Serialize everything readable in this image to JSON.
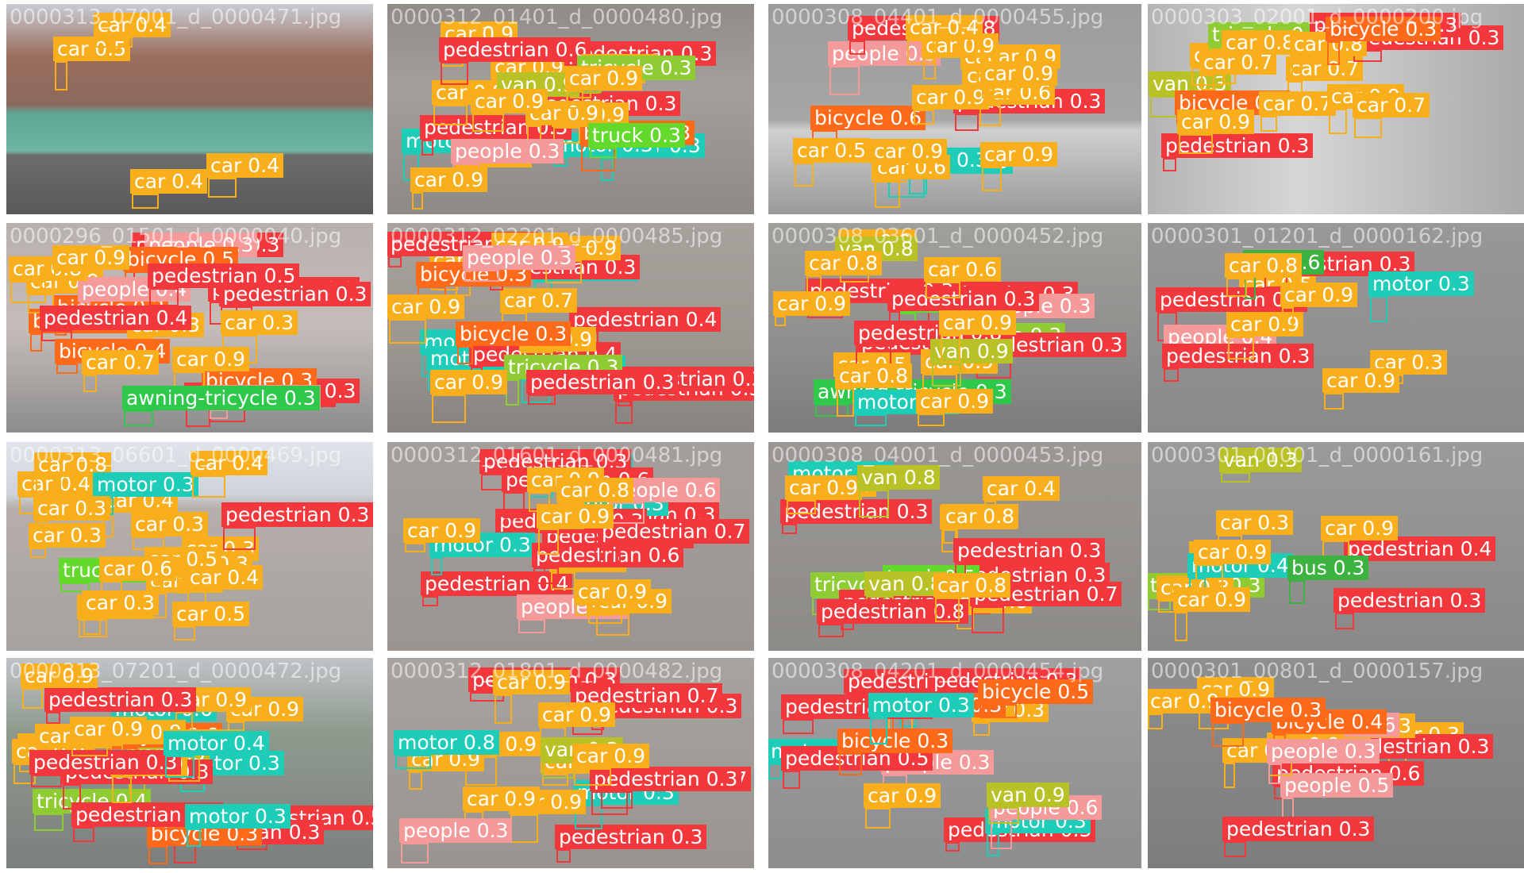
{
  "colors": {
    "pedestrian": "#f2383c",
    "people": "#f59a9a",
    "bicycle": "#ff6a1a",
    "car": "#f9ae1c",
    "van": "#b8c226",
    "truck": "#62d92b",
    "tricycle": "#8fcc33",
    "awning-tricycle": "#2ec84a",
    "bus": "#3cb340",
    "motor": "#1ecdb8"
  },
  "tiles": [
    {
      "filename": "0000313_07001_d_0000471.jpg",
      "dets": [
        [
          "car",
          0.4
        ],
        [
          "car",
          0.4
        ],
        [
          "car",
          0.5
        ],
        [
          "car",
          0.4
        ]
      ]
    },
    {
      "filename": "0000312_01401_d_0000480.jpg",
      "dets": [
        [
          "motor",
          0.3
        ],
        [
          "pedestrian",
          0.3
        ],
        [
          "motor",
          0.3
        ],
        [
          "motor",
          0.3
        ],
        [
          "bicycle",
          0.3
        ],
        [
          "pedestrian",
          0.3
        ],
        [
          "car",
          0.9
        ],
        [
          "car",
          0.9
        ],
        [
          "car",
          0.9
        ],
        [
          "car",
          0.9
        ],
        [
          "car",
          0.9
        ],
        [
          "car",
          0.9
        ],
        [
          "pedestrian",
          0.3
        ],
        [
          "car",
          0.9
        ],
        [
          "van",
          0.9
        ],
        [
          "pedestrian",
          0.6
        ],
        [
          "people",
          0.3
        ],
        [
          "car",
          0.9
        ],
        [
          "car",
          0.9
        ],
        [
          "truck",
          0.3
        ],
        [
          "tricycle",
          0.3
        ],
        [
          "car",
          0.9
        ],
        [
          "car",
          0.9
        ]
      ]
    },
    {
      "filename": "0000308_04401_d_0000455.jpg",
      "dets": [
        [
          "motor",
          0.3
        ],
        [
          "people",
          0.3
        ],
        [
          "pedestrian",
          0.3
        ],
        [
          "motor",
          0.3
        ],
        [
          "car",
          0.6
        ],
        [
          "car",
          0.9
        ],
        [
          "pedestrian",
          0.8
        ],
        [
          "car",
          0.9
        ],
        [
          "bicycle",
          0.6
        ],
        [
          "car",
          0.9
        ],
        [
          "car",
          0.9
        ],
        [
          "car",
          0.5
        ],
        [
          "car",
          0.9
        ],
        [
          "car",
          0.6
        ],
        [
          "car",
          0.9
        ],
        [
          "car",
          0.4
        ],
        [
          "car",
          0.9
        ],
        [
          "car",
          0.9
        ]
      ]
    },
    {
      "filename": "0000303_02001_d_0000200.jpg",
      "dets": [
        [
          "pedestrian",
          0.3
        ],
        [
          "van",
          0.3
        ],
        [
          "car",
          0.8
        ],
        [
          "car",
          0.7
        ],
        [
          "pedestrian",
          0.3
        ],
        [
          "tricycle",
          0.3
        ],
        [
          "pedestrian",
          0.3
        ],
        [
          "bicycle",
          0.6
        ],
        [
          "car",
          0.8
        ],
        [
          "car",
          0.7
        ],
        [
          "car",
          0.8
        ],
        [
          "car",
          0.9
        ],
        [
          "bicycle",
          0.3
        ],
        [
          "car",
          0.7
        ],
        [
          "car",
          0.7
        ],
        [
          "car",
          0.9
        ]
      ]
    },
    {
      "filename": "0000296_01501_d_0000040.jpg",
      "dets": [
        [
          "pedestrian",
          0.3
        ],
        [
          "pedestrian",
          0.3
        ],
        [
          "pedestrian",
          0.3
        ],
        [
          "pedestrian",
          0.3
        ],
        [
          "people",
          0.3
        ],
        [
          "bicycle",
          0.3
        ],
        [
          "bicycle",
          0.3
        ],
        [
          "bicycle",
          0.3
        ],
        [
          "pedestrian",
          0.3
        ],
        [
          "bicycle",
          0.5
        ],
        [
          "car",
          0.9
        ],
        [
          "people",
          0.4
        ],
        [
          "car",
          0.3
        ],
        [
          "car",
          0.3
        ],
        [
          "pedestrian",
          0.4
        ],
        [
          "car",
          0.8
        ],
        [
          "car",
          0.9
        ],
        [
          "bicycle",
          0.4
        ],
        [
          "pedestrian",
          0.5
        ],
        [
          "people",
          0.3
        ],
        [
          "car",
          0.7
        ],
        [
          "car",
          0.9
        ],
        [
          "awning-tricycle",
          0.3
        ]
      ]
    },
    {
      "filename": "0000312_02201_d_0000485.jpg",
      "dets": [
        [
          "pedestrian",
          0.3
        ],
        [
          "motor",
          0.3
        ],
        [
          "pedestrian",
          0.4
        ],
        [
          "pedestrian",
          0.3
        ],
        [
          "motor",
          0.3
        ],
        [
          "motor",
          0.3
        ],
        [
          "motor",
          0.3
        ],
        [
          "pedestrian",
          0.4
        ],
        [
          "car",
          0.9
        ],
        [
          "car",
          0.7
        ],
        [
          "car",
          0.4
        ],
        [
          "tricycle",
          0.3
        ],
        [
          "car",
          0.9
        ],
        [
          "bicycle",
          0.3
        ],
        [
          "pedestrian",
          0.3
        ],
        [
          "car",
          0.9
        ],
        [
          "car",
          0.6
        ],
        [
          "pedestrian",
          0.3
        ],
        [
          "bicycle",
          0.3
        ],
        [
          "pedestrian",
          0.5
        ],
        [
          "car",
          0.9
        ],
        [
          "people",
          0.3
        ],
        [
          "car",
          0.9
        ]
      ]
    },
    {
      "filename": "0000308_03601_d_0000452.jpg",
      "dets": [
        [
          "awning-tricycle",
          0.3
        ],
        [
          "tricycle",
          0.3
        ],
        [
          "pedestrian",
          0.3
        ],
        [
          "motor",
          0.3
        ],
        [
          "pedestrian",
          0.3
        ],
        [
          "pedestrian",
          0.6
        ],
        [
          "pedestrian",
          0.3
        ],
        [
          "people",
          0.3
        ],
        [
          "car",
          0.5
        ],
        [
          "car",
          0.9
        ],
        [
          "truck",
          0.3
        ],
        [
          "pedestrian",
          0.3
        ],
        [
          "car",
          0.9
        ],
        [
          "van",
          0.8
        ],
        [
          "car",
          0.8
        ],
        [
          "car",
          0.9
        ],
        [
          "pedestrian",
          0.8
        ],
        [
          "van",
          0.9
        ],
        [
          "car",
          0.9
        ],
        [
          "car",
          0.8
        ],
        [
          "car",
          0.6
        ],
        [
          "car",
          0.9
        ]
      ]
    },
    {
      "filename": "0000301_01201_d_0000162.jpg",
      "dets": [
        [
          "car",
          0.5
        ],
        [
          "pedestrian",
          0.3
        ],
        [
          "car",
          0.3
        ],
        [
          "people",
          0.4
        ],
        [
          "pedestrian",
          0.3
        ],
        [
          "motor",
          0.3
        ],
        [
          "pedestrian",
          0.3
        ],
        [
          "car",
          0.9
        ],
        [
          "car",
          0.9
        ],
        [
          "bus",
          0.6
        ],
        [
          "car",
          0.8
        ],
        [
          "car",
          0.9
        ]
      ]
    },
    {
      "filename": "0000313_06601_d_0000469.jpg",
      "dets": [
        [
          "car",
          0.3
        ],
        [
          "car",
          0.3
        ],
        [
          "truck",
          0.3
        ],
        [
          "car",
          0.3
        ],
        [
          "car",
          0.3
        ],
        [
          "pedestrian",
          0.3
        ],
        [
          "car",
          0.4
        ],
        [
          "car",
          0.3
        ],
        [
          "car",
          0.4
        ],
        [
          "car",
          0.5
        ],
        [
          "car",
          0.4
        ],
        [
          "car",
          0.8
        ],
        [
          "motor",
          0.3
        ],
        [
          "car",
          0.3
        ],
        [
          "car",
          0.6
        ],
        [
          "car",
          0.5
        ],
        [
          "car",
          0.3
        ],
        [
          "car",
          0.4
        ],
        [
          "car",
          0.3
        ]
      ]
    },
    {
      "filename": "0000312_01601_d_0000481.jpg",
      "dets": [
        [
          "pedestrian",
          0.3
        ],
        [
          "motor",
          0.3
        ],
        [
          "pedestrian",
          0.4
        ],
        [
          "pedestrian",
          0.3
        ],
        [
          "motor",
          0.3
        ],
        [
          "pedestrian",
          0.3
        ],
        [
          "pedestrian",
          0.3
        ],
        [
          "motor",
          0.3
        ],
        [
          "car",
          0.8
        ],
        [
          "pedestrian",
          0.6
        ],
        [
          "people",
          0.5
        ],
        [
          "pedestrian",
          0.6
        ],
        [
          "car",
          0.9
        ],
        [
          "car",
          0.6
        ],
        [
          "pedestrian",
          0.7
        ],
        [
          "car",
          0.9
        ],
        [
          "car",
          0.9
        ],
        [
          "people",
          0.6
        ],
        [
          "car",
          0.9
        ],
        [
          "car",
          0.8
        ],
        [
          "car",
          0.9
        ]
      ]
    },
    {
      "filename": "0000308_04001_d_0000453.jpg",
      "dets": [
        [
          "car",
          0.6
        ],
        [
          "tricycle",
          0.3
        ],
        [
          "pedestrian",
          0.3
        ],
        [
          "pedestrian",
          0.3
        ],
        [
          "motor",
          0.3
        ],
        [
          "car",
          0.3
        ],
        [
          "truck",
          0.5
        ],
        [
          "pedestrian",
          0.3
        ],
        [
          "car",
          0.4
        ],
        [
          "car",
          0.8
        ],
        [
          "van",
          0.8
        ],
        [
          "pedestrian",
          0.8
        ],
        [
          "pedestrian",
          0.7
        ],
        [
          "car",
          0.8
        ],
        [
          "pedestrian",
          0.3
        ],
        [
          "car",
          0.8
        ],
        [
          "car",
          0.9
        ],
        [
          "van",
          0.8
        ]
      ]
    },
    {
      "filename": "0000301_01001_d_0000161.jpg",
      "dets": [
        [
          "car",
          0.3
        ],
        [
          "car",
          0.3
        ],
        [
          "tricycle",
          0.3
        ],
        [
          "van",
          0.3
        ],
        [
          "car",
          0.3
        ],
        [
          "motor",
          0.4
        ],
        [
          "pedestrian",
          0.4
        ],
        [
          "pedestrian",
          0.3
        ],
        [
          "car",
          0.9
        ],
        [
          "car",
          0.9
        ],
        [
          "car",
          0.9
        ],
        [
          "bus",
          0.3
        ]
      ]
    },
    {
      "filename": "0000313_07201_d_0000472.jpg",
      "dets": [
        [
          "car",
          0.3
        ],
        [
          "tricycle",
          0.4
        ],
        [
          "pedestrian",
          0.5
        ],
        [
          "motor",
          0.6
        ],
        [
          "motor",
          0.3
        ],
        [
          "van",
          0.3
        ],
        [
          "pedestrian",
          0.3
        ],
        [
          "pedestrian",
          0.3
        ],
        [
          "bicycle",
          0.6
        ],
        [
          "car",
          0.9
        ],
        [
          "car",
          0.9
        ],
        [
          "bicycle",
          0.3
        ],
        [
          "car",
          0.9
        ],
        [
          "pedestrian",
          0.6
        ],
        [
          "car",
          0.9
        ],
        [
          "car",
          0.9
        ],
        [
          "motor",
          0.3
        ],
        [
          "car",
          0.4
        ],
        [
          "car",
          0.9
        ],
        [
          "pedestrian",
          0.3
        ],
        [
          "car",
          0.9
        ],
        [
          "motor",
          0.4
        ],
        [
          "pedestrian",
          0.3
        ],
        [
          "car",
          0.9
        ]
      ]
    },
    {
      "filename": "0000312_01801_d_0000482.jpg",
      "dets": [
        [
          "pedestrian",
          0.3
        ],
        [
          "pedestrian",
          0.3
        ],
        [
          "pedestrian",
          0.3
        ],
        [
          "car",
          0.8
        ],
        [
          "car",
          0.9
        ],
        [
          "pedestrian",
          0.7
        ],
        [
          "motor",
          0.3
        ],
        [
          "pedestrian",
          0.7
        ],
        [
          "car",
          0.9
        ],
        [
          "car",
          0.9
        ],
        [
          "pedestrian",
          0.3
        ],
        [
          "car",
          0.9
        ],
        [
          "car",
          0.9
        ],
        [
          "van",
          0.3
        ],
        [
          "people",
          0.3
        ],
        [
          "car",
          0.9
        ],
        [
          "motor",
          0.8
        ],
        [
          "car",
          0.9
        ]
      ]
    },
    {
      "filename": "0000308_04201_d_0000454.jpg",
      "dets": [
        [
          "car",
          0.3
        ],
        [
          "pedestrian",
          0.3
        ],
        [
          "people",
          0.3
        ],
        [
          "motor",
          0.3
        ],
        [
          "motor",
          0.3
        ],
        [
          "motor",
          0.7
        ],
        [
          "pedestrian",
          0.3
        ],
        [
          "people",
          0.6
        ],
        [
          "bicycle",
          0.3
        ],
        [
          "pedestrian",
          0.3
        ],
        [
          "car",
          0.9
        ],
        [
          "van",
          0.9
        ],
        [
          "car",
          0.9
        ],
        [
          "bicycle",
          0.5
        ],
        [
          "pedestrian",
          0.5
        ],
        [
          "pedestrian",
          0.3
        ],
        [
          "bicycle",
          0.3
        ],
        [
          "motor",
          0.3
        ]
      ]
    },
    {
      "filename": "0000301_00801_d_0000157.jpg",
      "dets": [
        [
          "car",
          0.3
        ],
        [
          "car",
          0.3
        ],
        [
          "pedestrian",
          0.3
        ],
        [
          "pedestrian",
          0.6
        ],
        [
          "car",
          0.3
        ],
        [
          "people",
          0.5
        ],
        [
          "people",
          0.6
        ],
        [
          "pedestrian",
          0.3
        ],
        [
          "car",
          0.9
        ],
        [
          "car",
          0.9
        ],
        [
          "bicycle",
          0.4
        ],
        [
          "car",
          0.9
        ],
        [
          "bicycle",
          0.3
        ],
        [
          "people",
          0.3
        ]
      ]
    }
  ]
}
